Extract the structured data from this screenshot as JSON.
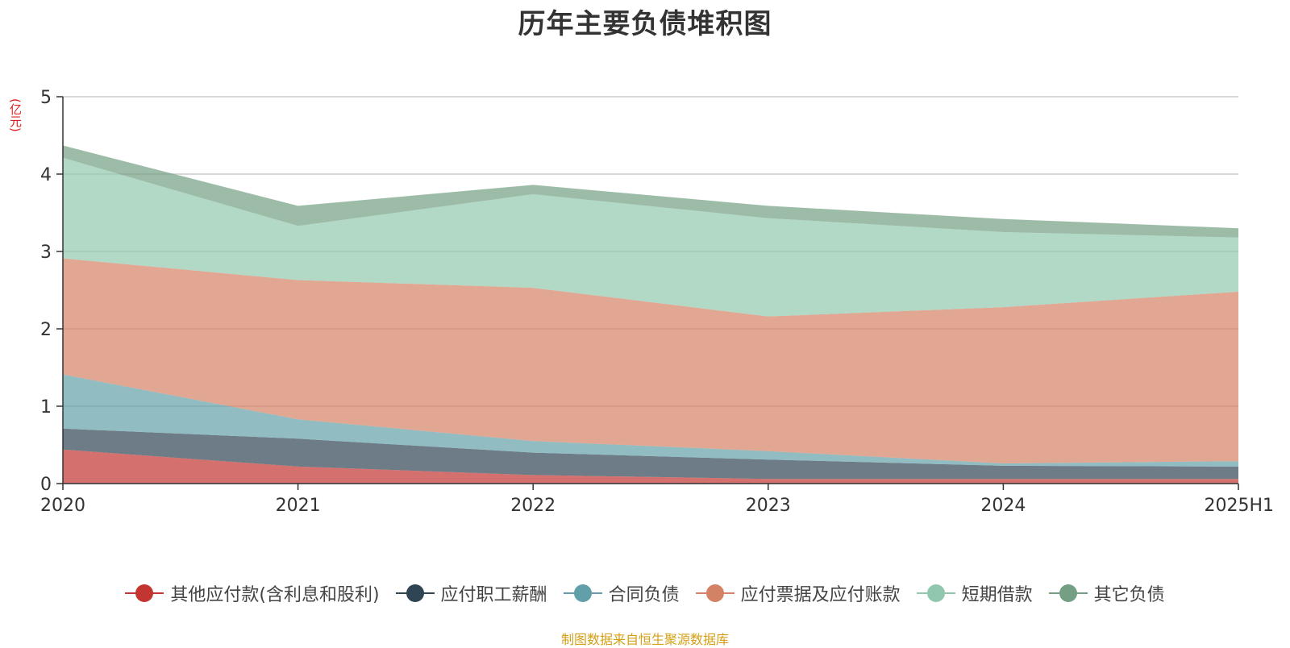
{
  "chart_data": {
    "type": "area",
    "stacked": true,
    "title": "历年主要负债堆积图",
    "ylabel": "(亿元)",
    "xlabel": "",
    "categories": [
      "2020",
      "2021",
      "2022",
      "2023",
      "2024",
      "2025H1"
    ],
    "ylim": [
      0,
      5
    ],
    "yticks": [
      0,
      1,
      2,
      3,
      4,
      5
    ],
    "grid": true,
    "legend_position": "bottom",
    "series": [
      {
        "name": "其他应付款(含利息和股利)",
        "color": "#c23531",
        "values": [
          0.44,
          0.22,
          0.11,
          0.06,
          0.06,
          0.06
        ]
      },
      {
        "name": "应付职工薪酬",
        "color": "#2f4554",
        "values": [
          0.27,
          0.36,
          0.29,
          0.25,
          0.17,
          0.16
        ]
      },
      {
        "name": "合同负债",
        "color": "#61a0a8",
        "values": [
          0.7,
          0.25,
          0.15,
          0.11,
          0.03,
          0.07
        ]
      },
      {
        "name": "应付票据及应付账款",
        "color": "#d48265",
        "values": [
          1.5,
          1.8,
          1.98,
          1.74,
          2.02,
          2.19
        ]
      },
      {
        "name": "短期借款",
        "color": "#91c7ae",
        "values": [
          1.3,
          0.7,
          1.21,
          1.27,
          0.97,
          0.7
        ]
      },
      {
        "name": "其它负债",
        "color": "#749f83",
        "values": [
          0.16,
          0.26,
          0.12,
          0.16,
          0.17,
          0.12
        ]
      }
    ]
  },
  "footer": {
    "source": "制图数据来自恒生聚源数据库"
  }
}
